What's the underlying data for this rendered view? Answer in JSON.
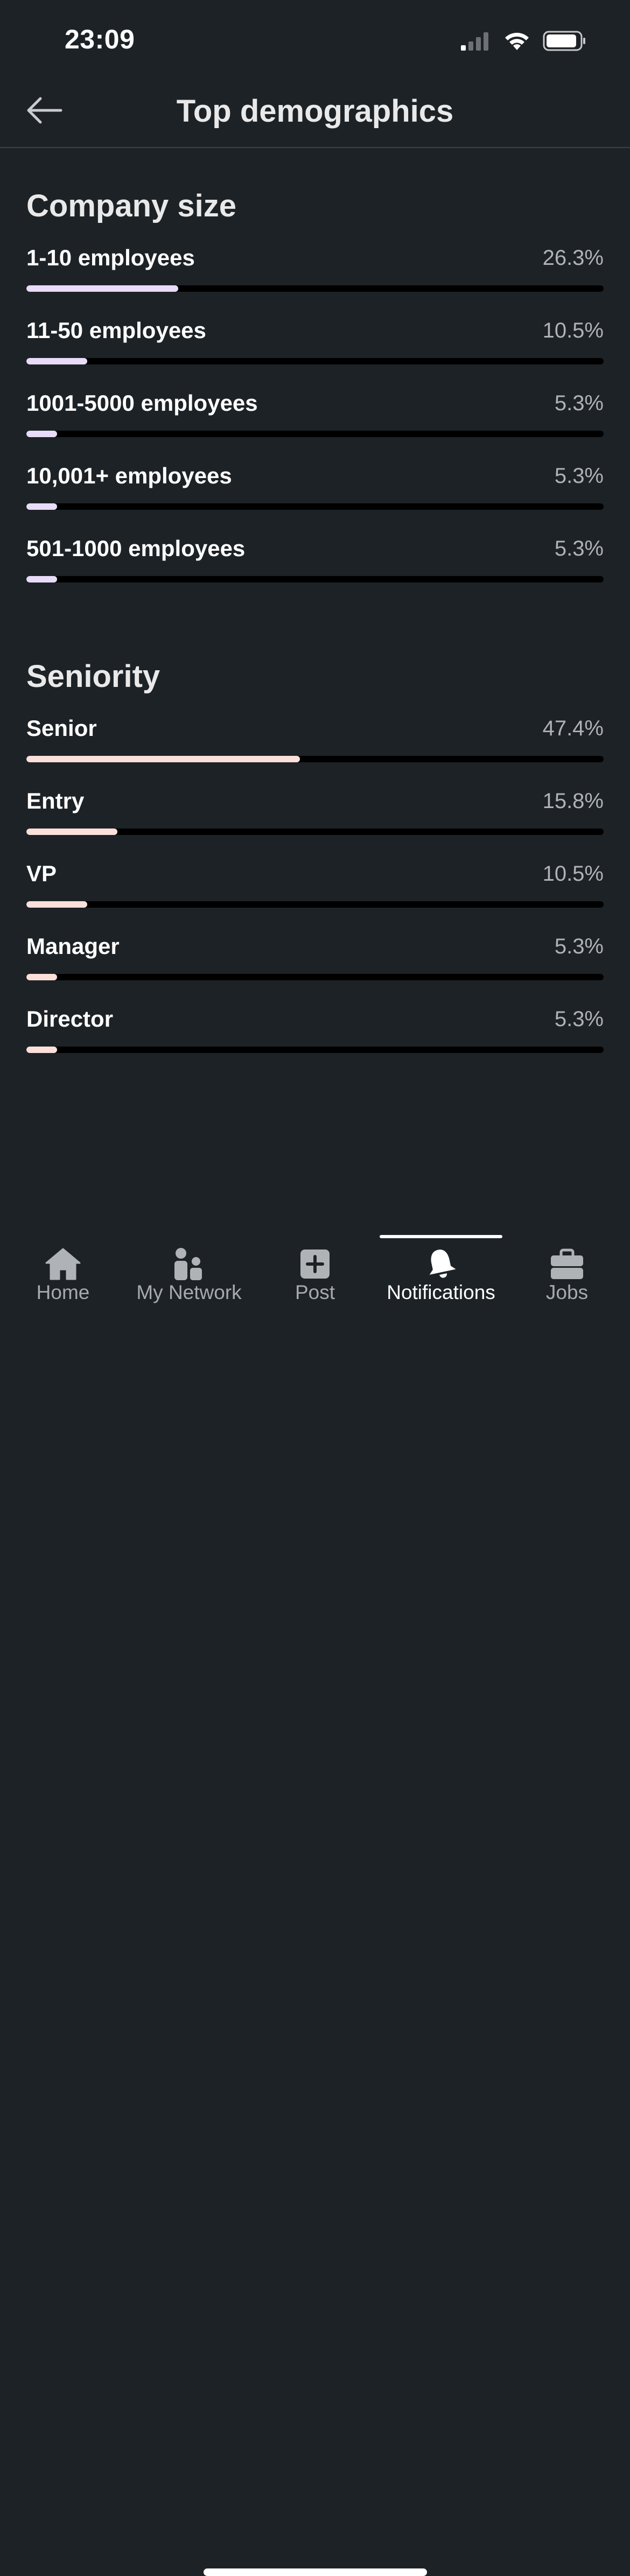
{
  "status_bar": {
    "time": "23:09",
    "icons": [
      "cellular-signal-icon",
      "wifi-icon",
      "battery-icon"
    ]
  },
  "header": {
    "title": "Top demographics",
    "back_icon": "arrow-left-icon"
  },
  "sections": {
    "company_size": {
      "title": "Company size",
      "rows": [
        {
          "label": "1-10 employees",
          "value": "26.3%",
          "percent": 26.3
        },
        {
          "label": "11-50 employees",
          "value": "10.5%",
          "percent": 10.5
        },
        {
          "label": "1001-5000 employees",
          "value": "5.3%",
          "percent": 5.3
        },
        {
          "label": "10,001+ employees",
          "value": "5.3%",
          "percent": 5.3
        },
        {
          "label": "501-1000 employees",
          "value": "5.3%",
          "percent": 5.3
        }
      ]
    },
    "seniority": {
      "title": "Seniority",
      "rows": [
        {
          "label": "Senior",
          "value": "47.4%",
          "percent": 47.4
        },
        {
          "label": "Entry",
          "value": "15.8%",
          "percent": 15.8
        },
        {
          "label": "VP",
          "value": "10.5%",
          "percent": 10.5
        },
        {
          "label": "Manager",
          "value": "5.3%",
          "percent": 5.3
        },
        {
          "label": "Director",
          "value": "5.3%",
          "percent": 5.3
        }
      ]
    }
  },
  "colors": {
    "background": "#1d2226",
    "company_bar": "#e8dcf8",
    "seniority_bar": "#fbe0da",
    "track": "#000000"
  },
  "bottom_nav": {
    "items": [
      {
        "label": "Home",
        "icon": "home-icon",
        "active": false
      },
      {
        "label": "My Network",
        "icon": "my-network-icon",
        "active": false
      },
      {
        "label": "Post",
        "icon": "post-plus-icon",
        "active": false
      },
      {
        "label": "Notifications",
        "icon": "bell-icon",
        "active": true
      },
      {
        "label": "Jobs",
        "icon": "briefcase-icon",
        "active": false
      }
    ]
  }
}
